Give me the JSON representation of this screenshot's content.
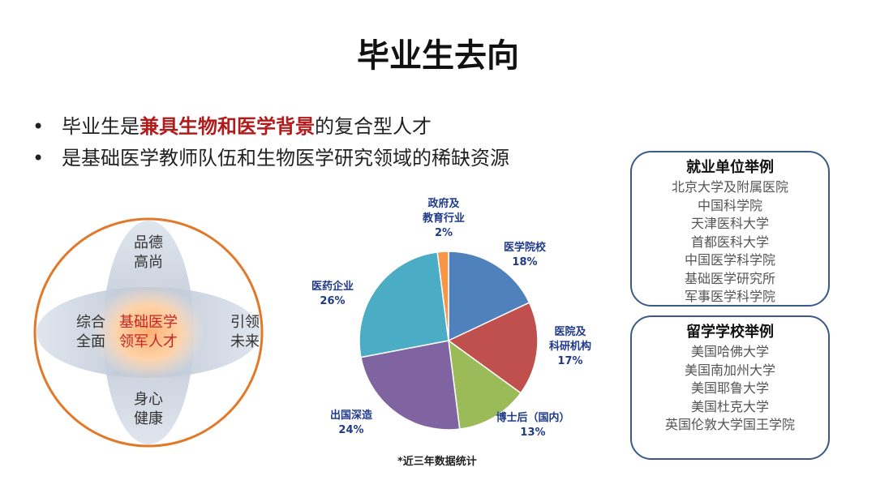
{
  "title": "毕业生去向",
  "bullets": [
    {
      "parts": [
        "毕业生是",
        "兼具生物和医学背景",
        "的复合型人才"
      ]
    },
    {
      "parts": [
        "是基础医学教师队伍和生物医学研究领域的稀缺资源"
      ]
    }
  ],
  "diagram": {
    "center": "基础医学\n领军人才",
    "top": "品德\n高尚",
    "left": "综合\n全面",
    "right": "引领\n未来",
    "bottom": "身心\n健康"
  },
  "chart_data": {
    "type": "pie",
    "categories": [
      "医学院校",
      "医院及\n科研机构",
      "博士后（国内）",
      "出国深造",
      "医药企业",
      "政府及\n教育行业"
    ],
    "values": [
      18,
      17,
      13,
      24,
      26,
      2
    ],
    "value_labels": [
      "18%",
      "17%",
      "13%",
      "24%",
      "26%",
      "2%"
    ],
    "colors": [
      "#4f81bd",
      "#c0504d",
      "#9bbb59",
      "#8064a2",
      "#4bacc6",
      "#f79646"
    ],
    "footnote": "*近三年数据统计"
  },
  "employers": {
    "title": "就业单位举例",
    "items": [
      "北京大学及附属医院",
      "中国科学院",
      "天津医科大学",
      "首都医科大学",
      "中国医学科学院",
      "基础医学研究所",
      "军事医学科学院"
    ]
  },
  "schools": {
    "title": "留学学校举例",
    "items": [
      "美国哈佛大学",
      "美国南加州大学",
      "美国耶鲁大学",
      "美国杜克大学",
      "英国伦敦大学国王学院"
    ]
  }
}
